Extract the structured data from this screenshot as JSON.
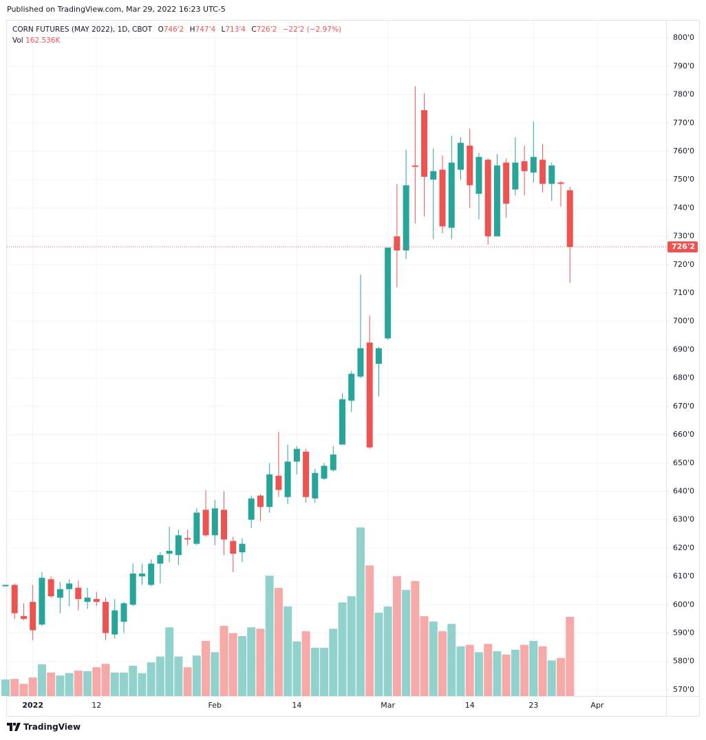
{
  "published": "Published on TradingView.com, Mar 29, 2022 16:23 UTC-5",
  "legend": {
    "symbol": "CORN FUTURES (MAY 2022), 1D, CBOT",
    "open_key": "O",
    "open": "746'2",
    "high_key": "H",
    "high": "747'4",
    "low_key": "L",
    "low": "713'4",
    "close_key": "C",
    "close": "726'2",
    "change": "−22'2 (−2.97%)",
    "volume_key": "Vol",
    "volume": "162.536K"
  },
  "footer": {
    "brand": "TradingView"
  },
  "chart_data": {
    "type": "candlestick",
    "categories": [
      null,
      null,
      null,
      "2022",
      null,
      null,
      null,
      null,
      null,
      null,
      "12",
      null,
      null,
      null,
      null,
      null,
      null,
      null,
      null,
      null,
      null,
      null,
      null,
      "Feb",
      null,
      null,
      null,
      null,
      null,
      null,
      null,
      null,
      "14",
      null,
      null,
      null,
      null,
      null,
      null,
      null,
      null,
      null,
      "Mar",
      null,
      null,
      null,
      null,
      null,
      null,
      null,
      null,
      "14",
      null,
      null,
      null,
      null,
      null,
      null,
      "23",
      null,
      null,
      null,
      null,
      null,
      null,
      "Apr"
    ],
    "open": [
      606.5,
      607,
      596,
      601,
      593,
      609,
      602.5,
      605.5,
      606,
      601,
      602,
      601,
      589.5,
      594,
      600,
      610,
      607,
      614.5,
      618,
      617.5,
      623.5,
      621.5,
      633.5,
      624.5,
      633.5,
      622.5,
      618.5,
      630,
      638.5,
      634.5,
      645.5,
      638,
      650.5,
      654,
      637.5,
      644.5,
      647.5,
      656.5,
      672,
      680.5,
      692.5,
      685,
      694,
      730,
      725,
      755,
      774.5,
      750,
      753.5,
      733,
      753.5,
      762,
      745,
      757,
      730,
      756,
      746.5,
      756.5,
      752.5,
      757,
      748.5,
      749,
      746.25,
      null,
      null,
      null
    ],
    "high": [
      607,
      607.5,
      600.5,
      607,
      611.5,
      610,
      608,
      609,
      608.5,
      606,
      604.5,
      602.5,
      602,
      601,
      614.5,
      614.5,
      616,
      618.5,
      627.5,
      626.5,
      626.5,
      634,
      640.5,
      637,
      640,
      624,
      623.5,
      638.5,
      639,
      650,
      661,
      656.5,
      656,
      655,
      648,
      650,
      656,
      674.5,
      682.5,
      716.5,
      702,
      691,
      726,
      748.5,
      760.5,
      783,
      780.5,
      761,
      758.5,
      765.5,
      765,
      768,
      759.5,
      757.5,
      759,
      757.5,
      765,
      762,
      770.5,
      762.5,
      756,
      749.5,
      747.5,
      null,
      null,
      null
    ],
    "low": [
      606.5,
      595,
      594.5,
      587.5,
      592.5,
      602.5,
      597,
      599.5,
      598,
      598.5,
      599.5,
      587.5,
      588,
      590,
      599.5,
      607,
      606.5,
      607.5,
      615,
      614,
      621,
      621,
      624,
      621,
      617.5,
      611.5,
      615,
      627,
      629.5,
      632.5,
      638,
      635.5,
      646,
      636,
      636,
      644,
      647,
      656.5,
      668,
      680,
      655,
      673.5,
      693.5,
      712,
      722,
      734.5,
      737,
      729,
      731,
      729,
      750,
      740,
      736,
      727,
      730,
      736.5,
      744.5,
      744.5,
      749,
      745.5,
      742.5,
      740.5,
      713.5,
      null,
      null,
      null
    ],
    "close": [
      607,
      597,
      595,
      591,
      609.5,
      603,
      605.5,
      607.5,
      602,
      602.5,
      601,
      590,
      598,
      600.5,
      611,
      611,
      614.5,
      617.5,
      619,
      624.5,
      623,
      632.5,
      624.5,
      634,
      623,
      618,
      621.5,
      637.5,
      634.5,
      646,
      640.5,
      650.5,
      655,
      638,
      646.5,
      649,
      653,
      672.5,
      681.5,
      690.5,
      655.5,
      690.5,
      726,
      725,
      748,
      754.5,
      751,
      753,
      733.5,
      756,
      763,
      748,
      758,
      730,
      755,
      741.5,
      756,
      753,
      758,
      748.5,
      755,
      748.5,
      726.25,
      null,
      null,
      null
    ],
    "volume": [
      34,
      35,
      25,
      38,
      65,
      48,
      42,
      47,
      52,
      51,
      59,
      66,
      48,
      48,
      62,
      47,
      69,
      81,
      141,
      81,
      59,
      83,
      113,
      90,
      144,
      129,
      123,
      141,
      138,
      247,
      222,
      184,
      112,
      133,
      99,
      99,
      138,
      192,
      205,
      346,
      268,
      171,
      184,
      246,
      218,
      236,
      164,
      153,
      133,
      148,
      102,
      105,
      90,
      107,
      92,
      85,
      95,
      105,
      113,
      102,
      73,
      78,
      162.536,
      null,
      null,
      null
    ],
    "up_color": "#26a69a",
    "down_color": "#ef5350",
    "volume_up_color": "#92d2cc",
    "volume_down_color": "#f7a9a7",
    "ylim": [
      567.8,
      806.1
    ],
    "yticks": [
      {
        "value": 570,
        "label": "570'0"
      },
      {
        "value": 580,
        "label": "580'0"
      },
      {
        "value": 590,
        "label": "590'0"
      },
      {
        "value": 600,
        "label": "600'0"
      },
      {
        "value": 610,
        "label": "610'0"
      },
      {
        "value": 620,
        "label": "620'0"
      },
      {
        "value": 630,
        "label": "630'0"
      },
      {
        "value": 640,
        "label": "640'0"
      },
      {
        "value": 650,
        "label": "650'0"
      },
      {
        "value": 660,
        "label": "660'0"
      },
      {
        "value": 670,
        "label": "670'0"
      },
      {
        "value": 680,
        "label": "680'0"
      },
      {
        "value": 690,
        "label": "690'0"
      },
      {
        "value": 700,
        "label": "700'0"
      },
      {
        "value": 710,
        "label": "710'0"
      },
      {
        "value": 720,
        "label": "720'0"
      },
      {
        "value": 730,
        "label": "730'0"
      },
      {
        "value": 740,
        "label": "740'0"
      },
      {
        "value": 750,
        "label": "750'0"
      },
      {
        "value": 760,
        "label": "760'0"
      },
      {
        "value": 770,
        "label": "770'0"
      },
      {
        "value": 780,
        "label": "780'0"
      },
      {
        "value": 790,
        "label": "790'0"
      },
      {
        "value": 800,
        "label": "800'0"
      }
    ],
    "last_price": {
      "value": 726.25,
      "label": "726'2"
    },
    "grid": true
  }
}
